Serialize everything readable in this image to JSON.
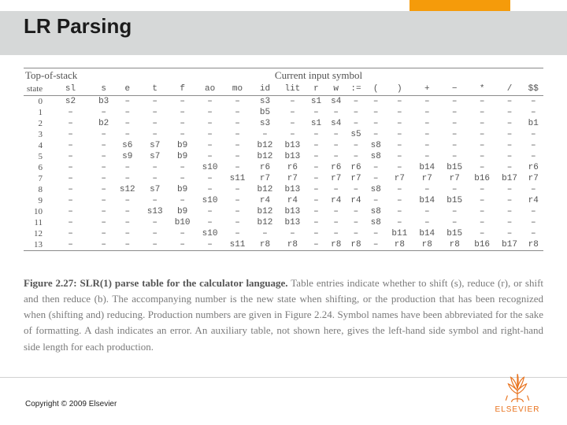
{
  "slide": {
    "title": "LR Parsing",
    "copyright": "Copyright © 2009 Elsevier",
    "publisher": "ELSEVIER"
  },
  "colors": {
    "band": "#d6d8d8",
    "accent": "#f59b0a",
    "text": "#525252",
    "caption": "#7a7a7a",
    "rule": "#8a8a8a",
    "logo": "#e8711b"
  },
  "table": {
    "top_left_label": "Top-of-stack",
    "top_right_label": "Current input symbol",
    "state_label": "state",
    "columns": [
      "sl",
      "s",
      "e",
      "t",
      "f",
      "ao",
      "mo",
      "id",
      "lit",
      "r",
      "w",
      ":=",
      "(",
      ")",
      "+",
      "−",
      "*",
      "/",
      "$$"
    ],
    "rows": [
      [
        "s2",
        "b3",
        "–",
        "–",
        "–",
        "–",
        "–",
        "s3",
        "–",
        "s1",
        "s4",
        "–",
        "–",
        "–",
        "–",
        "–",
        "–",
        "–",
        "–"
      ],
      [
        "–",
        "–",
        "–",
        "–",
        "–",
        "–",
        "–",
        "b5",
        "–",
        "–",
        "–",
        "–",
        "–",
        "–",
        "–",
        "–",
        "–",
        "–",
        "–"
      ],
      [
        "–",
        "b2",
        "–",
        "–",
        "–",
        "–",
        "–",
        "s3",
        "–",
        "s1",
        "s4",
        "–",
        "–",
        "–",
        "–",
        "–",
        "–",
        "–",
        "b1"
      ],
      [
        "–",
        "–",
        "–",
        "–",
        "–",
        "–",
        "–",
        "–",
        "–",
        "–",
        "–",
        "s5",
        "–",
        "–",
        "–",
        "–",
        "–",
        "–",
        "–"
      ],
      [
        "–",
        "–",
        "s6",
        "s7",
        "b9",
        "–",
        "–",
        "b12",
        "b13",
        "–",
        "–",
        "–",
        "s8",
        "–",
        "–",
        "–",
        "–",
        "–",
        "–"
      ],
      [
        "–",
        "–",
        "s9",
        "s7",
        "b9",
        "–",
        "–",
        "b12",
        "b13",
        "–",
        "–",
        "–",
        "s8",
        "–",
        "–",
        "–",
        "–",
        "–",
        "–"
      ],
      [
        "–",
        "–",
        "–",
        "–",
        "–",
        "s10",
        "–",
        "r6",
        "r6",
        "–",
        "r6",
        "r6",
        "–",
        "–",
        "b14",
        "b15",
        "–",
        "–",
        "r6"
      ],
      [
        "–",
        "–",
        "–",
        "–",
        "–",
        "–",
        "s11",
        "r7",
        "r7",
        "–",
        "r7",
        "r7",
        "–",
        "r7",
        "r7",
        "r7",
        "b16",
        "b17",
        "r7"
      ],
      [
        "–",
        "–",
        "s12",
        "s7",
        "b9",
        "–",
        "–",
        "b12",
        "b13",
        "–",
        "–",
        "–",
        "s8",
        "–",
        "–",
        "–",
        "–",
        "–",
        "–"
      ],
      [
        "–",
        "–",
        "–",
        "–",
        "–",
        "s10",
        "–",
        "r4",
        "r4",
        "–",
        "r4",
        "r4",
        "–",
        "–",
        "b14",
        "b15",
        "–",
        "–",
        "r4"
      ],
      [
        "–",
        "–",
        "–",
        "s13",
        "b9",
        "–",
        "–",
        "b12",
        "b13",
        "–",
        "–",
        "–",
        "s8",
        "–",
        "–",
        "–",
        "–",
        "–",
        "–"
      ],
      [
        "–",
        "–",
        "–",
        "–",
        "b10",
        "–",
        "–",
        "b12",
        "b13",
        "–",
        "–",
        "–",
        "s8",
        "–",
        "–",
        "–",
        "–",
        "–",
        "–"
      ],
      [
        "–",
        "–",
        "–",
        "–",
        "–",
        "s10",
        "–",
        "–",
        "–",
        "–",
        "–",
        "–",
        "–",
        "b11",
        "b14",
        "b15",
        "–",
        "–",
        "–"
      ],
      [
        "–",
        "–",
        "–",
        "–",
        "–",
        "–",
        "s11",
        "r8",
        "r8",
        "–",
        "r8",
        "r8",
        "–",
        "r8",
        "r8",
        "r8",
        "b16",
        "b17",
        "r8"
      ]
    ]
  },
  "caption": {
    "lead": "Figure 2.27: SLR(1) parse table for the calculator language.",
    "body": "Table entries indicate whether to shift (s), reduce (r), or shift and then reduce (b). The accompanying number is the new state when shifting, or the production that has been recognized when (shifting and) reducing. Production numbers are given in Figure 2.24. Symbol names have been abbreviated for the sake of formatting. A dash indicates an error. An auxiliary table, not shown here, gives the left-hand side symbol and right-hand side length for each production."
  }
}
